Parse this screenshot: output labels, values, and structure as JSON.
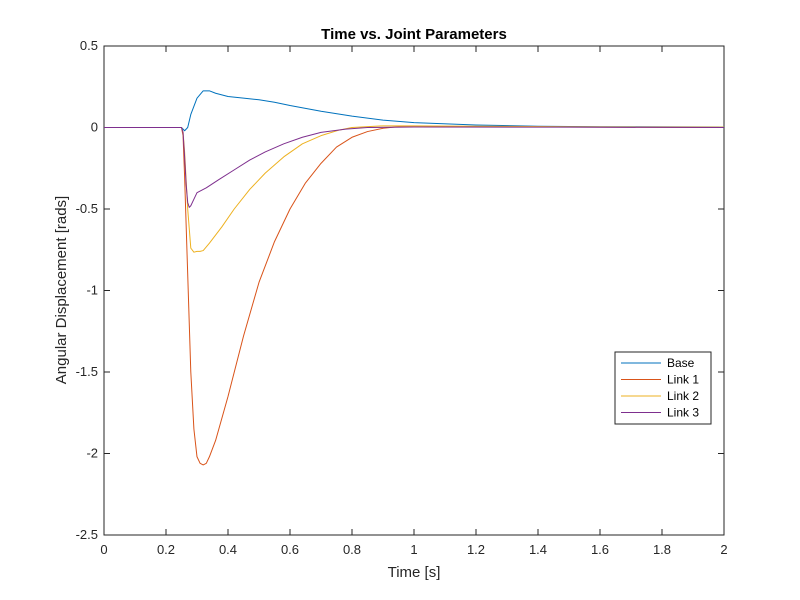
{
  "chart_data": {
    "type": "line",
    "title": "Time vs. Joint Parameters",
    "xlabel": "Time [s]",
    "ylabel": "Angular Displacement [rads]",
    "xlim": [
      0,
      2
    ],
    "ylim": [
      -2.5,
      0.5
    ],
    "xticks": [
      0,
      0.2,
      0.4,
      0.6,
      0.8,
      1,
      1.2,
      1.4,
      1.6,
      1.8,
      2
    ],
    "xtick_labels": [
      "0",
      "0.2",
      "0.4",
      "0.6",
      "0.8",
      "1",
      "1.2",
      "1.4",
      "1.6",
      "1.8",
      "2"
    ],
    "yticks": [
      0.5,
      0,
      -0.5,
      -1,
      -1.5,
      -2,
      -2.5
    ],
    "ytick_labels": [
      "0.5",
      "0",
      "-0.5",
      "-1",
      "-1.5",
      "-2",
      "-2.5"
    ],
    "grid": false,
    "legend_position": "right",
    "series": [
      {
        "name": "Base",
        "color": "#0072BD",
        "points": [
          [
            0,
            0
          ],
          [
            0.25,
            0
          ],
          [
            0.26,
            -0.02
          ],
          [
            0.27,
            0.0
          ],
          [
            0.28,
            0.08
          ],
          [
            0.3,
            0.18
          ],
          [
            0.32,
            0.225
          ],
          [
            0.34,
            0.225
          ],
          [
            0.36,
            0.21
          ],
          [
            0.4,
            0.19
          ],
          [
            0.45,
            0.18
          ],
          [
            0.5,
            0.17
          ],
          [
            0.55,
            0.155
          ],
          [
            0.6,
            0.135
          ],
          [
            0.7,
            0.1
          ],
          [
            0.8,
            0.07
          ],
          [
            0.9,
            0.045
          ],
          [
            1.0,
            0.03
          ],
          [
            1.2,
            0.015
          ],
          [
            1.4,
            0.008
          ],
          [
            1.6,
            0.005
          ],
          [
            2.0,
            0.003
          ]
        ]
      },
      {
        "name": "Link 1",
        "color": "#D95319",
        "points": [
          [
            0,
            0
          ],
          [
            0.25,
            0
          ],
          [
            0.255,
            -0.05
          ],
          [
            0.26,
            -0.3
          ],
          [
            0.27,
            -0.9
          ],
          [
            0.28,
            -1.5
          ],
          [
            0.29,
            -1.85
          ],
          [
            0.3,
            -2.02
          ],
          [
            0.31,
            -2.06
          ],
          [
            0.32,
            -2.07
          ],
          [
            0.33,
            -2.06
          ],
          [
            0.34,
            -2.02
          ],
          [
            0.36,
            -1.92
          ],
          [
            0.4,
            -1.65
          ],
          [
            0.45,
            -1.28
          ],
          [
            0.5,
            -0.95
          ],
          [
            0.55,
            -0.7
          ],
          [
            0.6,
            -0.5
          ],
          [
            0.65,
            -0.34
          ],
          [
            0.7,
            -0.22
          ],
          [
            0.75,
            -0.12
          ],
          [
            0.8,
            -0.06
          ],
          [
            0.85,
            -0.025
          ],
          [
            0.9,
            -0.005
          ],
          [
            0.95,
            0.005
          ],
          [
            1.0,
            0.005
          ],
          [
            1.2,
            0.004
          ],
          [
            1.6,
            0.002
          ],
          [
            2.0,
            0.0
          ]
        ]
      },
      {
        "name": "Link 2",
        "color": "#EDB120",
        "points": [
          [
            0,
            0
          ],
          [
            0.25,
            0
          ],
          [
            0.255,
            -0.03
          ],
          [
            0.26,
            -0.15
          ],
          [
            0.27,
            -0.5
          ],
          [
            0.28,
            -0.74
          ],
          [
            0.29,
            -0.765
          ],
          [
            0.3,
            -0.76
          ],
          [
            0.31,
            -0.76
          ],
          [
            0.32,
            -0.755
          ],
          [
            0.34,
            -0.71
          ],
          [
            0.38,
            -0.61
          ],
          [
            0.42,
            -0.5
          ],
          [
            0.47,
            -0.38
          ],
          [
            0.52,
            -0.28
          ],
          [
            0.58,
            -0.18
          ],
          [
            0.64,
            -0.1
          ],
          [
            0.7,
            -0.05
          ],
          [
            0.76,
            -0.015
          ],
          [
            0.8,
            0.0
          ],
          [
            0.9,
            0.01
          ],
          [
            1.0,
            0.01
          ],
          [
            1.2,
            0.008
          ],
          [
            1.6,
            0.004
          ],
          [
            2.0,
            0.002
          ]
        ]
      },
      {
        "name": "Link 3",
        "color": "#7E2F8E",
        "points": [
          [
            0,
            0
          ],
          [
            0.25,
            0
          ],
          [
            0.255,
            -0.03
          ],
          [
            0.26,
            -0.18
          ],
          [
            0.265,
            -0.35
          ],
          [
            0.27,
            -0.46
          ],
          [
            0.275,
            -0.49
          ],
          [
            0.28,
            -0.48
          ],
          [
            0.29,
            -0.44
          ],
          [
            0.3,
            -0.4
          ],
          [
            0.33,
            -0.37
          ],
          [
            0.37,
            -0.32
          ],
          [
            0.42,
            -0.26
          ],
          [
            0.47,
            -0.2
          ],
          [
            0.52,
            -0.15
          ],
          [
            0.58,
            -0.1
          ],
          [
            0.64,
            -0.06
          ],
          [
            0.7,
            -0.03
          ],
          [
            0.78,
            -0.01
          ],
          [
            0.85,
            0.0
          ],
          [
            1.0,
            0.003
          ],
          [
            1.5,
            0.002
          ],
          [
            2.0,
            0.0
          ]
        ]
      }
    ]
  }
}
